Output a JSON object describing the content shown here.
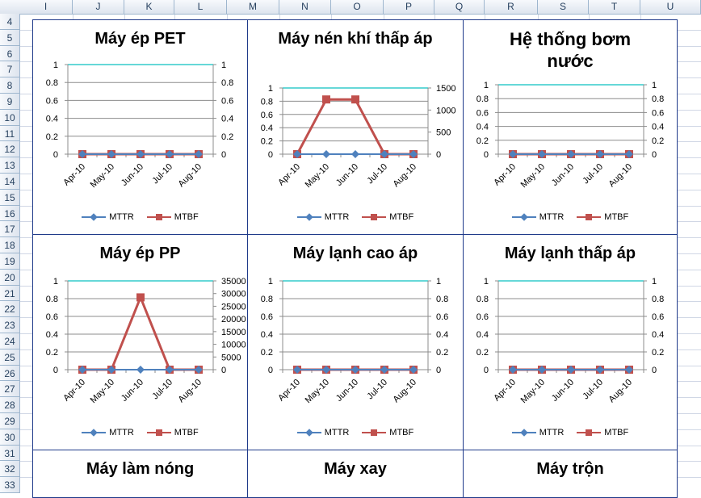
{
  "sheet": {
    "columns": [
      "I",
      "J",
      "K",
      "L",
      "M",
      "N",
      "O",
      "P",
      "Q",
      "R",
      "S",
      "T",
      "U"
    ],
    "rows": [
      "4",
      "5",
      "6",
      "7",
      "8",
      "9",
      "10",
      "11",
      "12",
      "13",
      "14",
      "15",
      "16",
      "17",
      "18",
      "19",
      "20",
      "21",
      "22",
      "23",
      "24",
      "25",
      "26",
      "27",
      "28",
      "29",
      "30",
      "31",
      "32",
      "33"
    ]
  },
  "colors": {
    "mttr": "#4f81bd",
    "mtbf": "#c0504d",
    "top_grid": "#33cccc",
    "border": "#1f3a8a"
  },
  "chart_data": [
    {
      "type": "line",
      "title": "Máy ép PET",
      "categories": [
        "Apr-10",
        "May-10",
        "Jun-10",
        "Jul-10",
        "Aug-10"
      ],
      "series": [
        {
          "name": "MTTR",
          "values": [
            0,
            0,
            0,
            0,
            0
          ],
          "axis": "left"
        },
        {
          "name": "MTBF",
          "values": [
            0,
            0,
            0,
            0,
            0
          ],
          "axis": "right"
        }
      ],
      "ylim": [
        0,
        1
      ],
      "y2lim": [
        0,
        1
      ],
      "yticks": [
        "0",
        "0.2",
        "0.4",
        "0.6",
        "0.8",
        "1"
      ],
      "y2ticks": [
        "0",
        "0.2",
        "0.4",
        "0.6",
        "0.8",
        "1"
      ],
      "legend": "bottom"
    },
    {
      "type": "line",
      "title": "Máy nén khí thấp áp",
      "categories": [
        "Apr-10",
        "May-10",
        "Jun-10",
        "Jul-10",
        "Aug-10"
      ],
      "series": [
        {
          "name": "MTTR",
          "values": [
            0,
            0,
            0,
            0,
            0
          ],
          "axis": "left"
        },
        {
          "name": "MTBF",
          "values": [
            0,
            1240,
            1240,
            0,
            0
          ],
          "axis": "right"
        }
      ],
      "ylim": [
        0,
        1
      ],
      "y2lim": [
        0,
        1500
      ],
      "yticks": [
        "0",
        "0.2",
        "0.4",
        "0.6",
        "0.8",
        "1"
      ],
      "y2ticks": [
        "0",
        "500",
        "1000",
        "1500"
      ],
      "legend": "bottom"
    },
    {
      "type": "line",
      "title": "Hệ thống bơm nước",
      "categories": [
        "Apr-10",
        "May-10",
        "Jun-10",
        "Jul-10",
        "Aug-10"
      ],
      "series": [
        {
          "name": "MTTR",
          "values": [
            0,
            0,
            0,
            0,
            0
          ],
          "axis": "left"
        },
        {
          "name": "MTBF",
          "values": [
            0,
            0,
            0,
            0,
            0
          ],
          "axis": "right"
        }
      ],
      "ylim": [
        0,
        1
      ],
      "y2lim": [
        0,
        1
      ],
      "yticks": [
        "0",
        "0.2",
        "0.4",
        "0.6",
        "0.8",
        "1"
      ],
      "y2ticks": [
        "0",
        "0.2",
        "0.4",
        "0.6",
        "0.8",
        "1"
      ],
      "legend": "bottom"
    },
    {
      "type": "line",
      "title": "Máy ép PP",
      "categories": [
        "Apr-10",
        "May-10",
        "Jun-10",
        "Jul-10",
        "Aug-10"
      ],
      "series": [
        {
          "name": "MTTR",
          "values": [
            0,
            0,
            0,
            0,
            0
          ],
          "axis": "left"
        },
        {
          "name": "MTBF",
          "values": [
            0,
            0,
            28500,
            0,
            0
          ],
          "axis": "right"
        }
      ],
      "ylim": [
        0,
        1
      ],
      "y2lim": [
        0,
        35000
      ],
      "yticks": [
        "0",
        "0.2",
        "0.4",
        "0.6",
        "0.8",
        "1"
      ],
      "y2ticks": [
        "0",
        "5000",
        "10000",
        "15000",
        "20000",
        "25000",
        "30000",
        "35000"
      ],
      "legend": "bottom"
    },
    {
      "type": "line",
      "title": "Máy lạnh cao áp",
      "categories": [
        "Apr-10",
        "May-10",
        "Jun-10",
        "Jul-10",
        "Aug-10"
      ],
      "series": [
        {
          "name": "MTTR",
          "values": [
            0,
            0,
            0,
            0,
            0
          ],
          "axis": "left"
        },
        {
          "name": "MTBF",
          "values": [
            0,
            0,
            0,
            0,
            0
          ],
          "axis": "right"
        }
      ],
      "ylim": [
        0,
        1
      ],
      "y2lim": [
        0,
        1
      ],
      "yticks": [
        "0",
        "0.2",
        "0.4",
        "0.6",
        "0.8",
        "1"
      ],
      "y2ticks": [
        "0",
        "0.2",
        "0.4",
        "0.6",
        "0.8",
        "1"
      ],
      "legend": "bottom"
    },
    {
      "type": "line",
      "title": "Máy lạnh thấp áp",
      "categories": [
        "Apr-10",
        "May-10",
        "Jun-10",
        "Jul-10",
        "Aug-10"
      ],
      "series": [
        {
          "name": "MTTR",
          "values": [
            0,
            0,
            0,
            0,
            0
          ],
          "axis": "left"
        },
        {
          "name": "MTBF",
          "values": [
            0,
            0,
            0,
            0,
            0
          ],
          "axis": "right"
        }
      ],
      "ylim": [
        0,
        1
      ],
      "y2lim": [
        0,
        1
      ],
      "yticks": [
        "0",
        "0.2",
        "0.4",
        "0.6",
        "0.8",
        "1"
      ],
      "y2ticks": [
        "0",
        "0.2",
        "0.4",
        "0.6",
        "0.8",
        "1"
      ],
      "legend": "bottom"
    },
    {
      "type": "line",
      "title": "Máy làm nóng"
    },
    {
      "type": "line",
      "title": "Máy xay"
    },
    {
      "type": "line",
      "title": "Máy trộn"
    }
  ]
}
